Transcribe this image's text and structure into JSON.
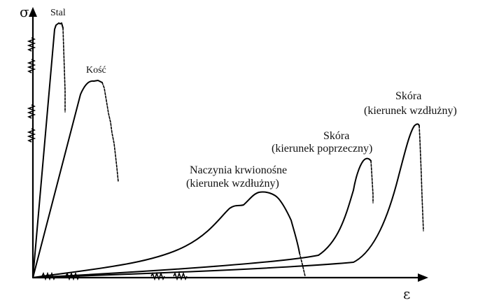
{
  "chart_data": {
    "type": "line",
    "ylabel": "σ",
    "xlabel": "ε",
    "series": [
      {
        "name": "Stal",
        "label_lines": [
          "Stal"
        ]
      },
      {
        "name": "Kość",
        "label_lines": [
          "Kość"
        ]
      },
      {
        "name": "Naczynia krwionośne (kierunek wzdłużny)",
        "label_lines": [
          "Naczynia krwionośne",
          "(kierunek wzdłużny)"
        ]
      },
      {
        "name": "Skóra (kierunek poprzeczny)",
        "label_lines": [
          "Skóra",
          "(kierunek poprzeczny)"
        ]
      },
      {
        "name": "Skóra (kierunek wzdłużny)",
        "label_lines": [
          "Skóra",
          "(kierunek wzdłużny)"
        ]
      }
    ]
  }
}
